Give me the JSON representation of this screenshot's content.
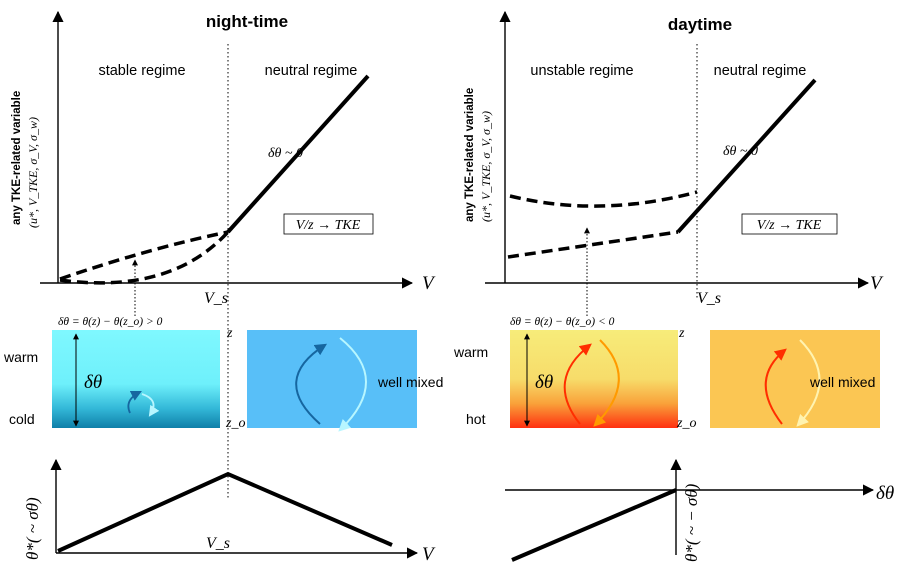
{
  "colors": {
    "night_gradient_top": "#7ff8ff",
    "night_gradient_mid": "#57d9ee",
    "night_gradient_bottom": "#0f7fa8",
    "night_mixed_box": "#58bff8",
    "night_arrow_dark": "#1666a0",
    "night_arrow_light": "#b7f6ff",
    "day_gradient_top": "#f7ec7a",
    "day_gradient_mid": "#f7c24a",
    "day_gradient_bottom": "#ff3a12",
    "day_mixed_box": "#fbc653",
    "day_arrow_red": "#ff2e00",
    "day_arrow_orange": "#ff9a00",
    "day_arrow_light": "#fff3b0",
    "line": "#000000"
  },
  "night": {
    "title": "night-time",
    "ylabel": "any TKE-related variable",
    "ylabel_vars": "(u*, V_TKE, σ_V, σ_w)",
    "regime_left": "stable regime",
    "regime_right": "neutral regime",
    "delta_theta_zero": "δθ ~ 0",
    "box_label": "V/z → TKE",
    "x_label": "V",
    "vs_label": "V_s",
    "delta_theta_def": "δθ = θ(z) − θ(z_o) > 0",
    "warm": "warm",
    "cold": "cold",
    "delta_theta": "δθ",
    "z": "z",
    "z_o": "z_o",
    "well_mixed": "well mixed",
    "bottom_ylabel": "θ*( ~ σθ)",
    "bottom_xlabel": "V",
    "bottom_vs": "V_s"
  },
  "day": {
    "title": "daytime",
    "ylabel": "any TKE-related variable",
    "ylabel_vars": "(u*, V_TKE, σ_V, σ_w)",
    "regime_left": "unstable regime",
    "regime_right": "neutral regime",
    "delta_theta_zero": "δθ ~ 0",
    "box_label": "V/z → TKE",
    "x_label": "V",
    "vs_label": "V_s",
    "delta_theta_def": "δθ = θ(z) − θ(z_o) < 0",
    "warm": "warm",
    "hot": "hot",
    "delta_theta": "δθ",
    "z": "z",
    "z_o": "z_o",
    "well_mixed": "well mixed",
    "bottom_ylabel": "θ*( ~ − σθ)",
    "bottom_xlabel": "δθ"
  }
}
